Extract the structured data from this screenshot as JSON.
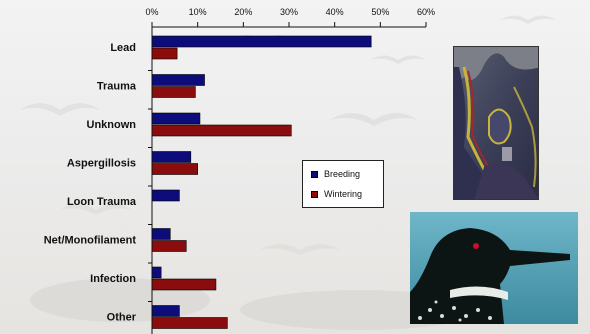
{
  "chart_data": {
    "type": "bar",
    "orientation": "horizontal",
    "categories": [
      "Lead",
      "Trauma",
      "Unknown",
      "Aspergillosis",
      "Loon Trauma",
      "Net/Monofilament",
      "Infection",
      "Other"
    ],
    "series": [
      {
        "name": "Breeding",
        "color": "#0c0c7a",
        "values": [
          48,
          11.5,
          10.5,
          8.5,
          6,
          4,
          2,
          6
        ]
      },
      {
        "name": "Wintering",
        "color": "#8b0c0c",
        "values": [
          5.5,
          9.5,
          30.5,
          10,
          0,
          7.5,
          14,
          16.5
        ]
      }
    ],
    "xlim": [
      0,
      60
    ],
    "xticks": [
      "0%",
      "10%",
      "20%",
      "30%",
      "40%",
      "50%",
      "60%"
    ],
    "grid": false,
    "legend": {
      "placement": "center-right",
      "entries": [
        "Breeding",
        "Wintering"
      ]
    }
  },
  "photos": [
    {
      "name": "loon-eye-closeup-photo"
    },
    {
      "name": "common-loon-head-photo"
    }
  ]
}
